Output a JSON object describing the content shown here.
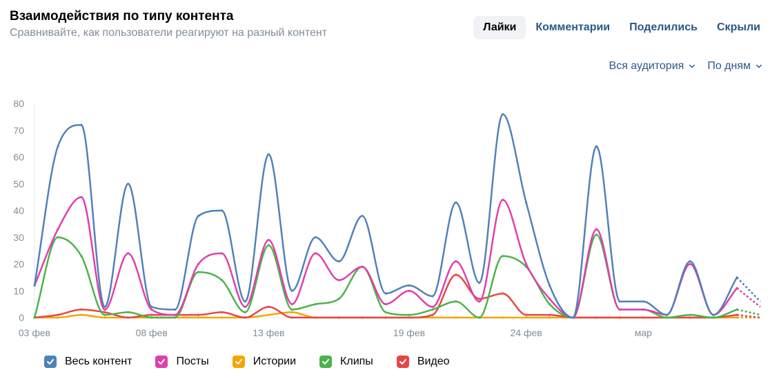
{
  "header": {
    "title": "Взаимодействия по типу контента",
    "subtitle": "Сравнивайте, как пользователи реагируют на разный контент"
  },
  "tabs": [
    {
      "label": "Лайки",
      "active": true
    },
    {
      "label": "Комментарии",
      "active": false
    },
    {
      "label": "Поделились",
      "active": false
    },
    {
      "label": "Скрыли",
      "active": false
    }
  ],
  "filters": {
    "audience": "Вся аудитория",
    "period": "По дням"
  },
  "chart_data": {
    "type": "line",
    "xlabel": "",
    "ylabel": "",
    "ylim": [
      0,
      80
    ],
    "yticks": [
      0,
      10,
      20,
      30,
      40,
      50,
      60,
      70,
      80
    ],
    "xtick_labels": [
      {
        "index": 0,
        "label": "03 фев"
      },
      {
        "index": 5,
        "label": "08 фев"
      },
      {
        "index": 10,
        "label": "13 фев"
      },
      {
        "index": 16,
        "label": "19 фев"
      },
      {
        "index": 21,
        "label": "24 фев"
      },
      {
        "index": 26,
        "label": "мар"
      }
    ],
    "grid": false,
    "legend_position": "bottom-left",
    "series": [
      {
        "name": "Весь контент",
        "color": "#5181b8",
        "values": [
          12,
          64,
          72,
          4,
          50,
          4,
          3,
          38,
          40,
          6,
          61,
          10,
          30,
          21,
          38,
          9,
          12,
          8,
          43,
          13,
          76,
          43,
          12,
          0,
          64,
          6,
          6,
          1,
          21,
          1,
          15,
          6
        ]
      },
      {
        "name": "Посты",
        "color": "#e03fab",
        "values": [
          12,
          33,
          45,
          3,
          24,
          3,
          1,
          20,
          24,
          4,
          29,
          5,
          24,
          14,
          19,
          5,
          10,
          4,
          21,
          6,
          44,
          20,
          7,
          0,
          33,
          3,
          3,
          1,
          20,
          1,
          11,
          4
        ]
      },
      {
        "name": "Истории",
        "color": "#f6a400",
        "values": [
          0,
          0,
          1,
          0,
          0,
          0,
          0,
          0,
          0,
          0,
          1,
          2,
          0,
          0,
          0,
          0,
          0,
          0,
          0,
          0,
          0,
          0,
          0,
          0,
          0,
          0,
          0,
          0,
          0,
          0,
          0,
          0
        ]
      },
      {
        "name": "Клипы",
        "color": "#4bb34b",
        "values": [
          0,
          30,
          23,
          1,
          2,
          0,
          0,
          17,
          14,
          2,
          27,
          3,
          5,
          7,
          19,
          2,
          1,
          3,
          6,
          0,
          23,
          19,
          5,
          0,
          31,
          3,
          3,
          0,
          1,
          0,
          3,
          1
        ]
      },
      {
        "name": "Видео",
        "color": "#e64646",
        "values": [
          0,
          1,
          3,
          2,
          0,
          1,
          1,
          1,
          2,
          0,
          4,
          0,
          0,
          0,
          0,
          0,
          0,
          1,
          16,
          7,
          9,
          1,
          1,
          0,
          0,
          0,
          0,
          0,
          0,
          0,
          1,
          0
        ]
      }
    ]
  }
}
